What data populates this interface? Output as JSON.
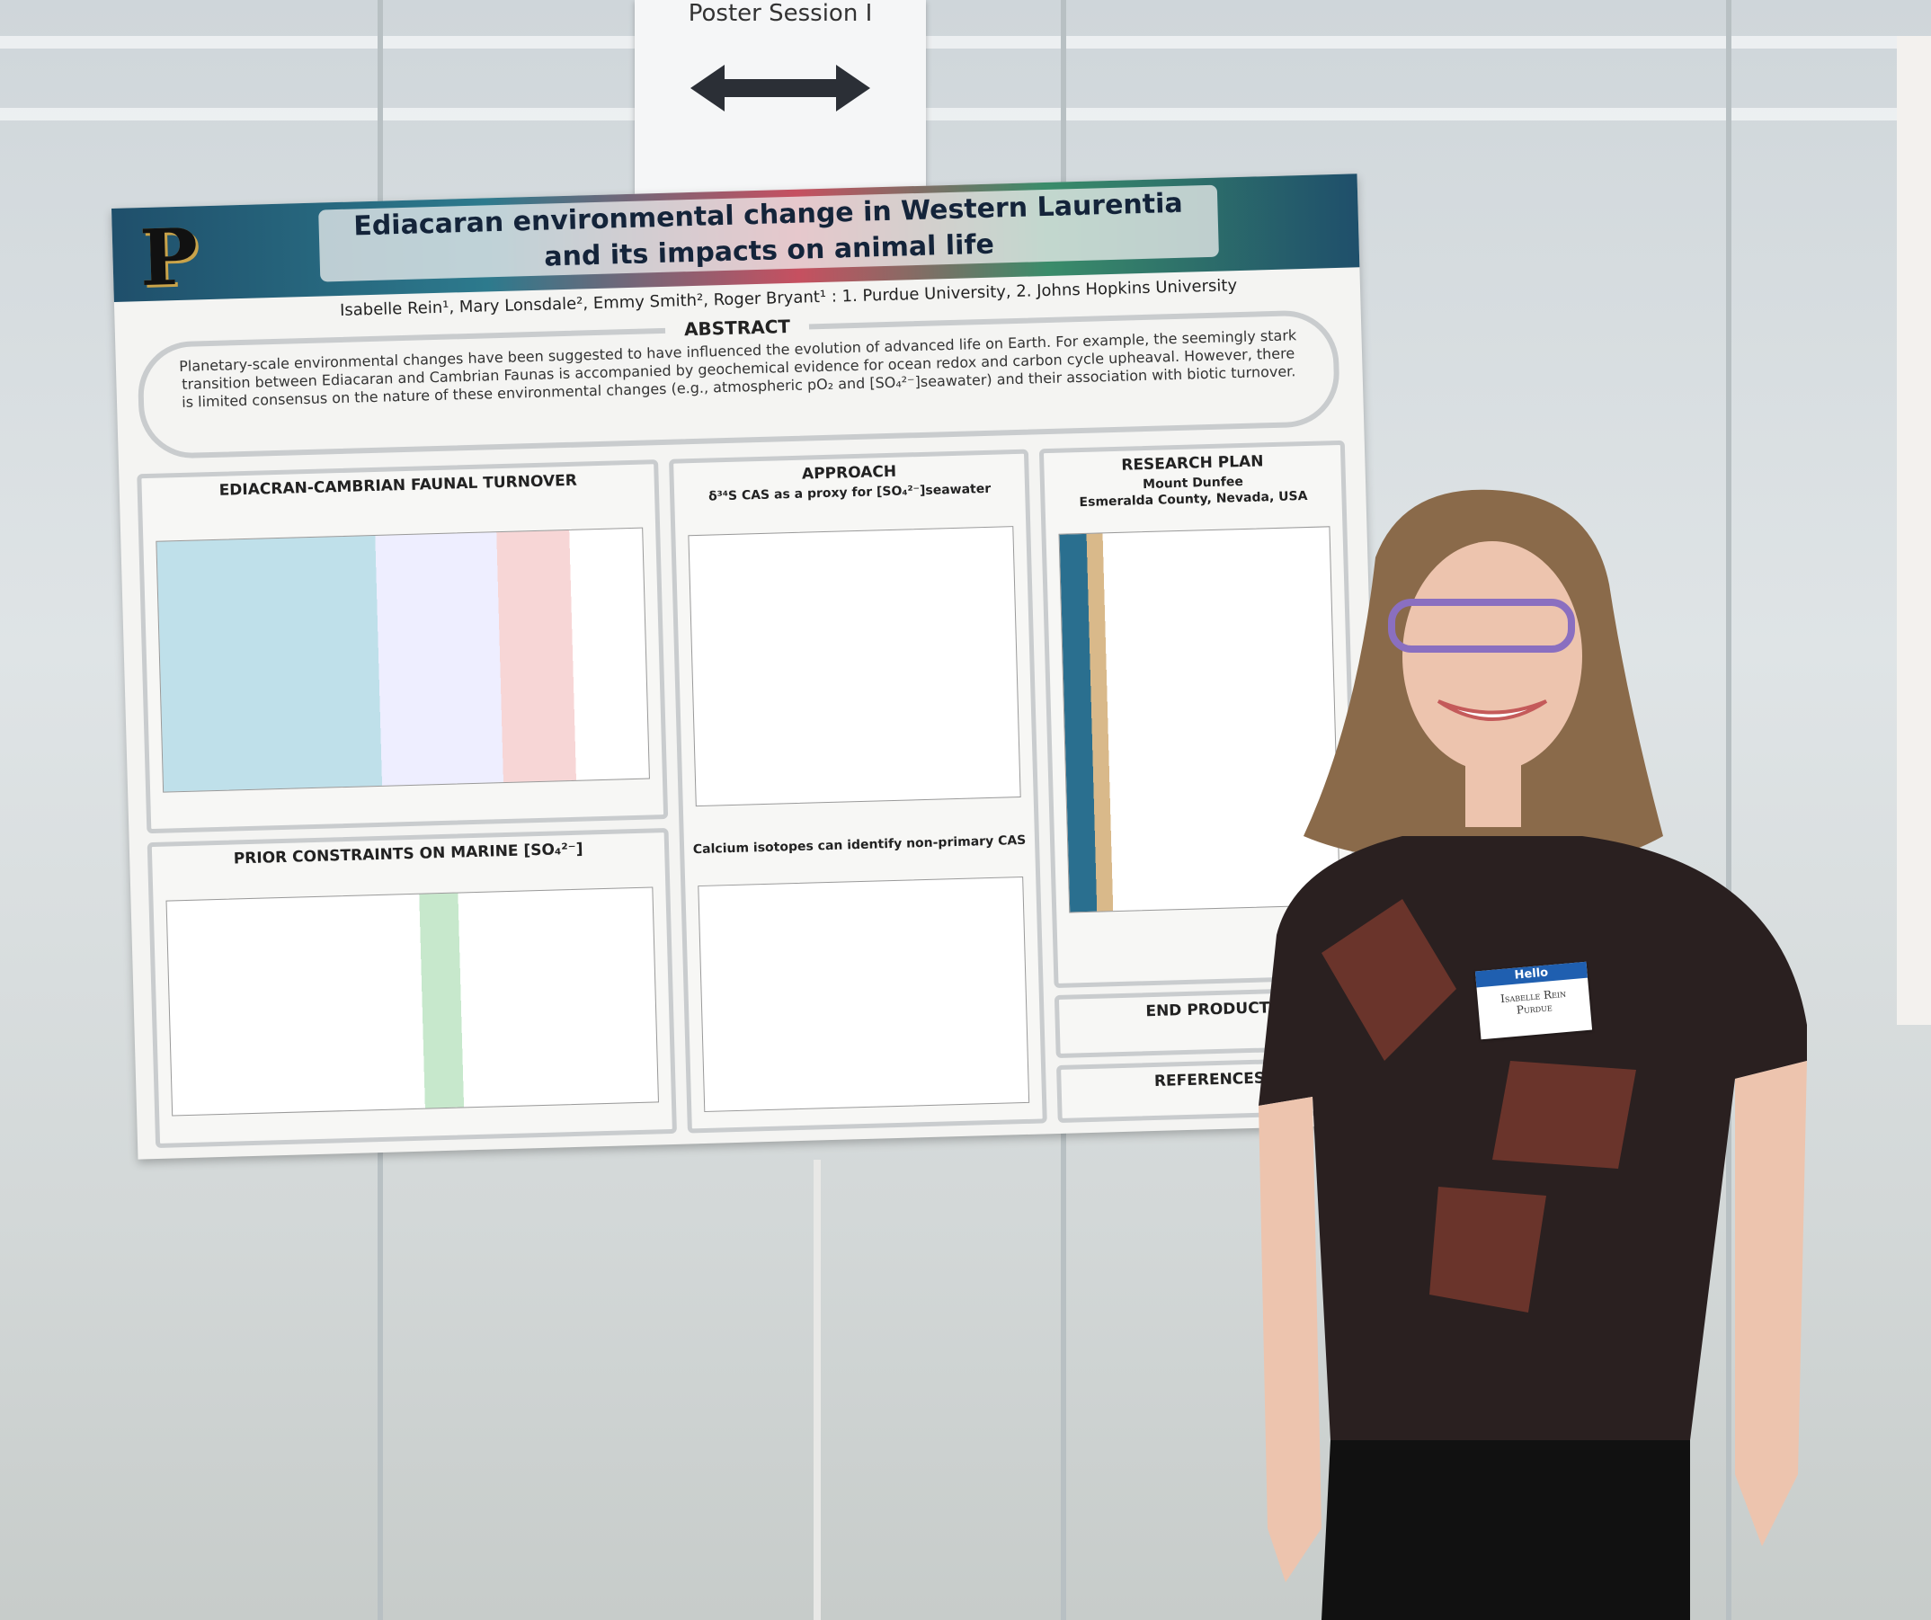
{
  "sign": {
    "text": "Poster Session I"
  },
  "poster": {
    "logo": "P",
    "title_line1": "Ediacaran environmental change in Western Laurentia",
    "title_line2": "and its impacts on animal life",
    "authors": "Isabelle Rein¹, Mary Lonsdale², Emmy Smith², Roger Bryant¹ : 1. Purdue University, 2. Johns Hopkins University",
    "abstract_heading": "ABSTRACT",
    "abstract": "Planetary-scale environmental changes have been suggested to have influenced the evolution of advanced life on Earth. For example, the seemingly stark transition between Ediacaran and Cambrian Faunas is accompanied by geochemical evidence for ocean redox and carbon cycle upheaval. However, there is limited consensus on the nature of these environmental changes (e.g., atmospheric pO₂ and [SO₄²⁻]seawater) and their association with biotic turnover.",
    "sections": [
      {
        "heading": "EDIACRAN-CAMBRIAN FAUNAL TURNOVER"
      },
      {
        "heading": "PRIOR CONSTRAINTS ON MARINE [SO₄²⁻]"
      },
      {
        "heading": "APPROACH",
        "subheading": "δ³⁴S CAS as a proxy for [SO₄²⁻]seawater"
      },
      {
        "heading": "Calcium isotopes can identify non-primary CAS"
      },
      {
        "heading": "RESEARCH PLAN",
        "subheading": "Mount Dunfee",
        "location": "Esmeralda County, Nevada, USA"
      },
      {
        "heading": "END PRODUCT"
      },
      {
        "heading": "REFERENCES"
      }
    ]
  },
  "name_tag": {
    "hello": "Hello",
    "name": "Isabelle Rein",
    "school": "Purdue"
  }
}
